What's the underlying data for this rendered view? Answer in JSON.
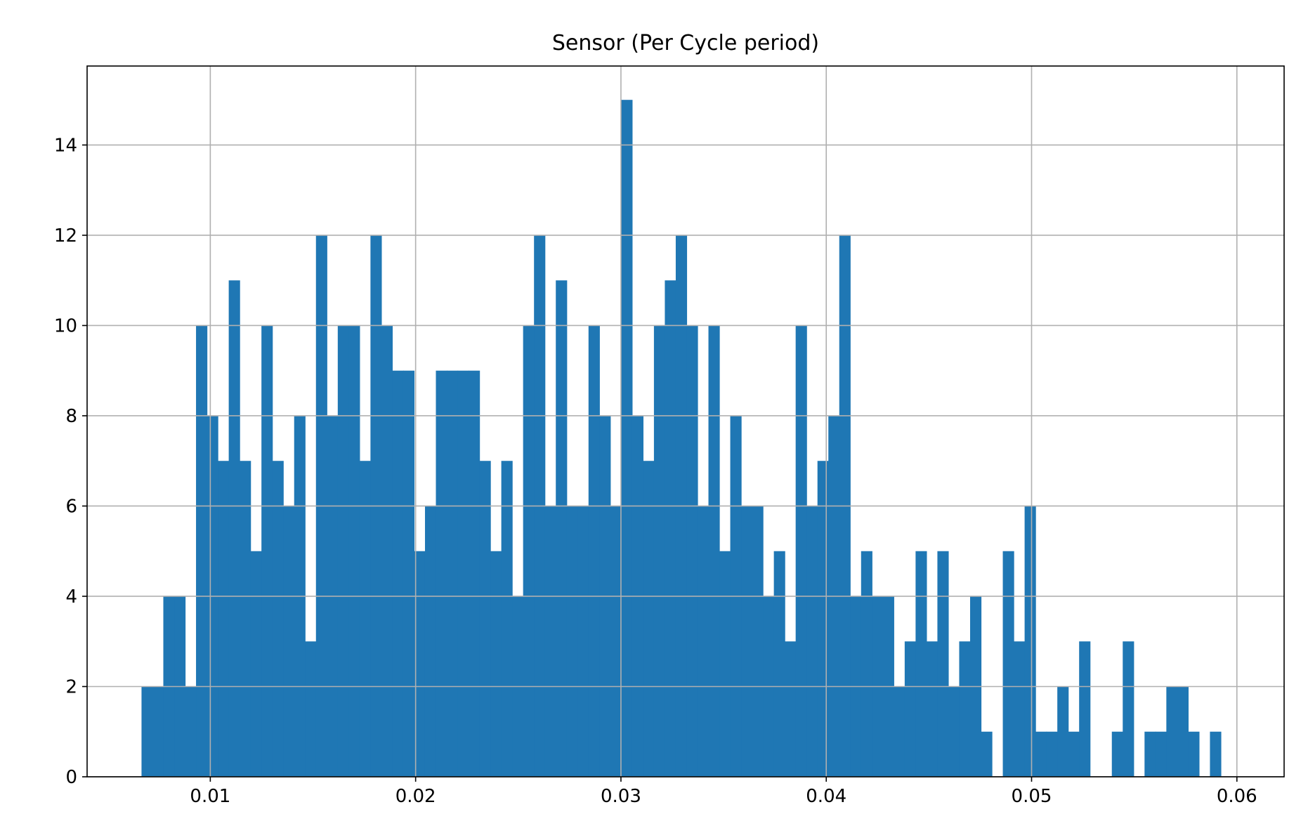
{
  "chart_data": {
    "type": "bar",
    "title": "Sensor (Per Cycle period)",
    "xlabel": "",
    "ylabel": "",
    "xlim": [
      0.004,
      0.0623
    ],
    "ylim": [
      0,
      15.75
    ],
    "grid": true,
    "bar_color": "#1f77b4",
    "grid_color": "#b0b0b0",
    "bin_start": 0.00665,
    "bin_width": 0.000531,
    "counts": [
      2,
      2,
      4,
      4,
      2,
      10,
      8,
      7,
      11,
      7,
      5,
      10,
      7,
      6,
      8,
      3,
      12,
      8,
      10,
      10,
      7,
      12,
      10,
      9,
      9,
      5,
      6,
      9,
      9,
      9,
      9,
      7,
      5,
      7,
      4,
      10,
      12,
      6,
      11,
      6,
      6,
      10,
      8,
      6,
      15,
      8,
      7,
      10,
      11,
      12,
      10,
      6,
      10,
      5,
      8,
      6,
      6,
      4,
      5,
      3,
      10,
      6,
      7,
      8,
      12,
      4,
      5,
      4,
      4,
      2,
      3,
      5,
      3,
      5,
      2,
      3,
      4,
      1,
      0,
      5,
      3,
      6,
      1,
      1,
      2,
      1,
      3,
      0,
      0,
      1,
      3,
      0,
      1,
      1,
      2,
      2,
      1,
      0,
      1
    ],
    "x_ticks": [
      0.01,
      0.02,
      0.03,
      0.04,
      0.05,
      0.06
    ],
    "x_tick_labels": [
      "0.01",
      "0.02",
      "0.03",
      "0.04",
      "0.05",
      "0.06"
    ],
    "y_ticks": [
      0,
      2,
      4,
      6,
      8,
      10,
      12,
      14
    ],
    "y_tick_labels": [
      "0",
      "2",
      "4",
      "6",
      "8",
      "10",
      "12",
      "14"
    ]
  }
}
